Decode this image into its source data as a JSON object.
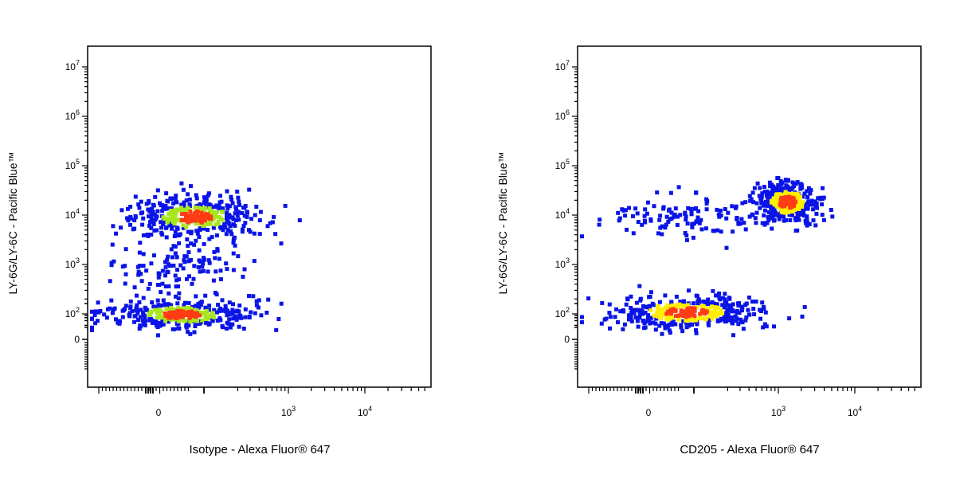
{
  "chart_data": [
    {
      "type": "scatter",
      "xlabel": "Isotype - Alexa Fluor® 647",
      "ylabel": "LY-6G/LY-6C - Pacific Blue™",
      "x_scale": "biexponential",
      "y_scale": "biexponential",
      "x_ticks": [
        {
          "value": 0,
          "base": "0",
          "exp": ""
        },
        {
          "value": 1000,
          "base": "10",
          "exp": "3"
        },
        {
          "value": 10000,
          "base": "10",
          "exp": "4"
        }
      ],
      "y_ticks": [
        {
          "value": 0,
          "base": "0",
          "exp": ""
        },
        {
          "value": 100,
          "base": "10",
          "exp": "2"
        },
        {
          "value": 1000,
          "base": "10",
          "exp": "3"
        },
        {
          "value": 10000,
          "base": "10",
          "exp": "4"
        },
        {
          "value": 100000,
          "base": "10",
          "exp": "5"
        },
        {
          "value": 1000000,
          "base": "10",
          "exp": "6"
        },
        {
          "value": 10000000,
          "base": "10",
          "exp": "7"
        }
      ],
      "density_colors": {
        "low": "#0a14e6",
        "mid": "#a8e61e",
        "high": "#ff3c14"
      },
      "populations": [
        {
          "x_range": [
            -60,
            250
          ],
          "y_range": [
            -30,
            160
          ],
          "density": "high"
        },
        {
          "x_range": [
            -20,
            300
          ],
          "y_range": [
            5000,
            20000
          ],
          "density": "high"
        },
        {
          "x_range": [
            -60,
            200
          ],
          "y_range": [
            300,
            3000
          ],
          "density": "low"
        }
      ]
    },
    {
      "type": "scatter",
      "xlabel": "CD205 - Alexa Fluor® 647",
      "ylabel": "LY-6G/LY-6C - Pacific Blue™",
      "x_scale": "biexponential",
      "y_scale": "biexponential",
      "x_ticks": [
        {
          "value": 0,
          "base": "0",
          "exp": ""
        },
        {
          "value": 1000,
          "base": "10",
          "exp": "3"
        },
        {
          "value": 10000,
          "base": "10",
          "exp": "4"
        }
      ],
      "y_ticks": [
        {
          "value": 0,
          "base": "0",
          "exp": ""
        },
        {
          "value": 100,
          "base": "10",
          "exp": "2"
        },
        {
          "value": 1000,
          "base": "10",
          "exp": "3"
        },
        {
          "value": 10000,
          "base": "10",
          "exp": "4"
        },
        {
          "value": 100000,
          "base": "10",
          "exp": "5"
        },
        {
          "value": 1000000,
          "base": "10",
          "exp": "6"
        },
        {
          "value": 10000000,
          "base": "10",
          "exp": "7"
        }
      ],
      "density_colors": {
        "low": "#0a14e6",
        "mid": "#ffee00",
        "high": "#ff3c14"
      },
      "populations": [
        {
          "x_range": [
            -40,
            500
          ],
          "y_range": [
            -30,
            200
          ],
          "density": "mid"
        },
        {
          "x_range": [
            500,
            3000
          ],
          "y_range": [
            10000,
            40000
          ],
          "density": "high"
        },
        {
          "x_range": [
            -20,
            600
          ],
          "y_range": [
            5000,
            20000
          ],
          "density": "low"
        }
      ]
    }
  ]
}
